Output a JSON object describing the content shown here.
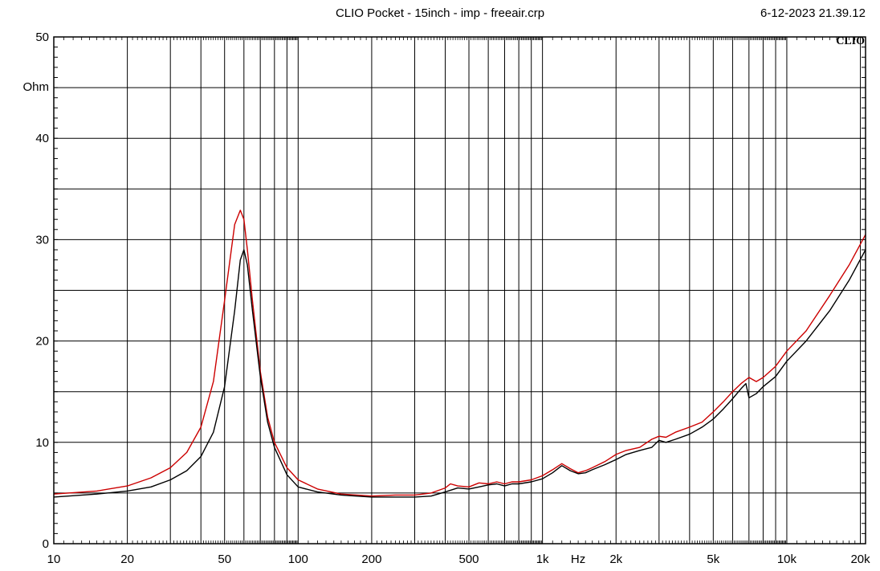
{
  "header": {
    "title": "CLIO Pocket - 15inch - imp - freeair.crp",
    "timestamp": "6-12-2023 21.39.12",
    "brand": "CLIO"
  },
  "chart_data": {
    "type": "line",
    "title": "CLIO Pocket - 15inch - imp - freeair.crp",
    "xlabel": "Hz",
    "ylabel": "Ohm",
    "x_scale": "log",
    "xlim": [
      10,
      21000
    ],
    "ylim": [
      0,
      50
    ],
    "grid": true,
    "x_tick_labels": [
      {
        "value": 10,
        "label": "10"
      },
      {
        "value": 20,
        "label": "20"
      },
      {
        "value": 50,
        "label": "50"
      },
      {
        "value": 100,
        "label": "100"
      },
      {
        "value": 200,
        "label": "200"
      },
      {
        "value": 500,
        "label": "500"
      },
      {
        "value": 1000,
        "label": "1k"
      },
      {
        "value": 2000,
        "label": "2k"
      },
      {
        "value": 5000,
        "label": "5k"
      },
      {
        "value": 10000,
        "label": "10k"
      },
      {
        "value": 20000,
        "label": "20k"
      }
    ],
    "y_tick_labels": [
      {
        "value": 0,
        "label": "0"
      },
      {
        "value": 10,
        "label": "10"
      },
      {
        "value": 20,
        "label": "20"
      },
      {
        "value": 30,
        "label": "30"
      },
      {
        "value": 40,
        "label": "40"
      },
      {
        "value": 50,
        "label": "50"
      }
    ],
    "series": [
      {
        "color": "#cc0000",
        "x": [
          10,
          15,
          20,
          25,
          30,
          35,
          40,
          45,
          50,
          55,
          58,
          60,
          62,
          65,
          70,
          75,
          80,
          90,
          100,
          120,
          150,
          200,
          250,
          300,
          350,
          400,
          420,
          450,
          500,
          550,
          600,
          650,
          700,
          750,
          800,
          900,
          1000,
          1100,
          1200,
          1300,
          1400,
          1500,
          1600,
          1800,
          2000,
          2200,
          2500,
          2800,
          3000,
          3200,
          3500,
          4000,
          4500,
          5000,
          5500,
          6000,
          6500,
          7000,
          7500,
          8000,
          9000,
          10000,
          12000,
          15000,
          18000,
          21000
        ],
        "values": [
          4.9,
          5.2,
          5.7,
          6.5,
          7.5,
          9.0,
          11.5,
          16.0,
          24.0,
          31.5,
          32.9,
          32.0,
          29.0,
          24.0,
          17.0,
          12.5,
          10.0,
          7.5,
          6.3,
          5.4,
          4.9,
          4.7,
          4.8,
          4.8,
          5.0,
          5.5,
          5.9,
          5.7,
          5.6,
          6.0,
          5.9,
          6.1,
          5.9,
          6.1,
          6.1,
          6.3,
          6.7,
          7.3,
          7.9,
          7.4,
          7.0,
          7.2,
          7.5,
          8.1,
          8.8,
          9.2,
          9.5,
          10.3,
          10.6,
          10.5,
          11.0,
          11.5,
          12.0,
          13.0,
          14.0,
          15.0,
          15.8,
          16.4,
          16.0,
          16.4,
          17.5,
          19.0,
          21.0,
          24.5,
          27.5,
          30.5
        ]
      },
      {
        "color": "#000000",
        "x": [
          10,
          15,
          20,
          25,
          30,
          35,
          40,
          45,
          50,
          55,
          58,
          60,
          62,
          65,
          70,
          75,
          80,
          90,
          100,
          120,
          150,
          200,
          250,
          300,
          350,
          400,
          450,
          500,
          550,
          600,
          650,
          700,
          750,
          800,
          900,
          1000,
          1100,
          1200,
          1300,
          1400,
          1500,
          1600,
          1800,
          2000,
          2200,
          2500,
          2800,
          3000,
          3200,
          3500,
          4000,
          4500,
          5000,
          5500,
          6000,
          6500,
          6800,
          7000,
          7500,
          8000,
          9000,
          10000,
          12000,
          15000,
          18000,
          21000
        ],
        "values": [
          4.6,
          4.9,
          5.2,
          5.6,
          6.3,
          7.2,
          8.6,
          11.0,
          15.5,
          23.0,
          28.0,
          29.0,
          27.5,
          23.0,
          16.5,
          12.0,
          9.5,
          6.8,
          5.6,
          5.1,
          4.8,
          4.6,
          4.6,
          4.6,
          4.7,
          5.1,
          5.5,
          5.4,
          5.6,
          5.8,
          5.9,
          5.7,
          5.9,
          5.9,
          6.1,
          6.4,
          7.0,
          7.7,
          7.2,
          6.9,
          7.0,
          7.3,
          7.8,
          8.3,
          8.8,
          9.2,
          9.5,
          10.2,
          10.0,
          10.3,
          10.8,
          11.5,
          12.3,
          13.3,
          14.3,
          15.3,
          15.8,
          14.4,
          14.8,
          15.5,
          16.5,
          18.0,
          20.0,
          23.0,
          26.0,
          29.0
        ]
      }
    ]
  }
}
